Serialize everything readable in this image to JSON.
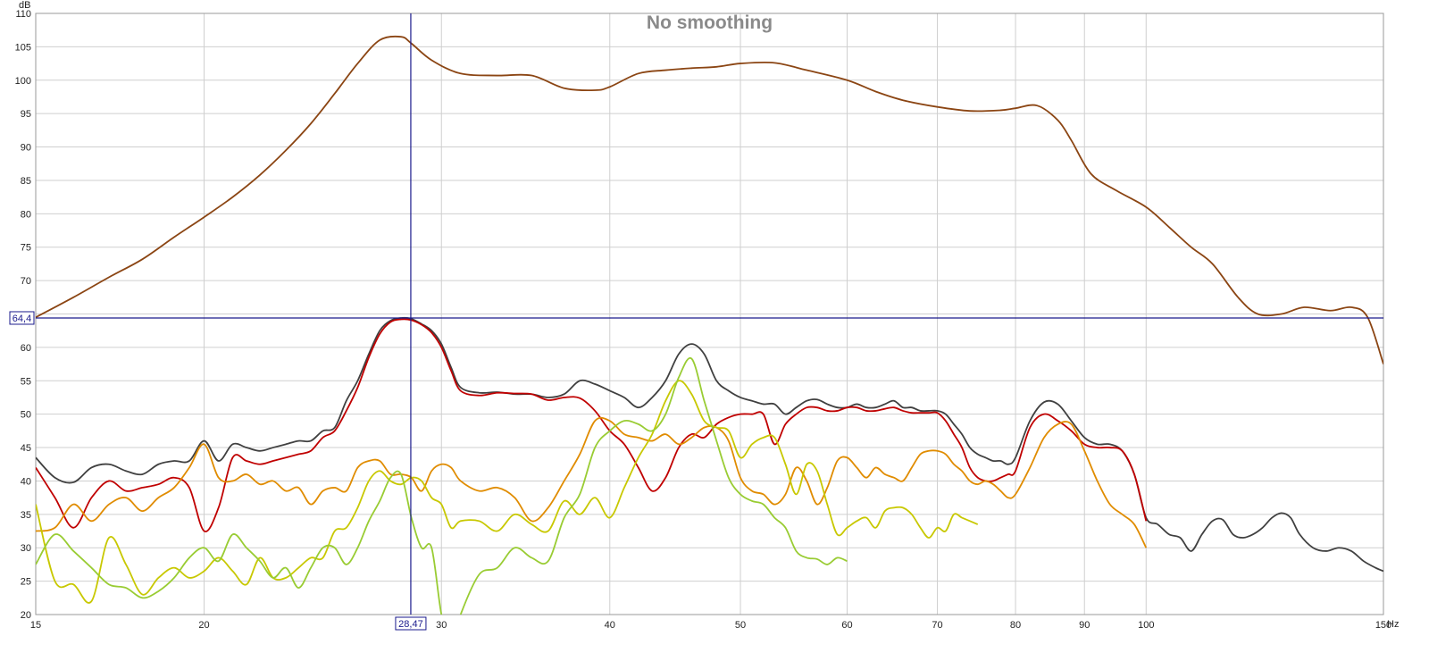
{
  "chart_data": {
    "type": "line",
    "title": "No smoothing",
    "ylabel": "dB",
    "xlabel": "Hz",
    "x_scale": "log",
    "xlim": [
      15,
      150
    ],
    "ylim": [
      20,
      110
    ],
    "grid": true,
    "x_ticks": [
      15,
      20,
      30,
      40,
      50,
      60,
      70,
      80,
      90,
      100,
      150
    ],
    "x_tick_labels": [
      "15",
      "20",
      "30",
      "40",
      "50",
      "60",
      "70",
      "80",
      "90",
      "100",
      "150"
    ],
    "y_ticks": [
      20,
      25,
      30,
      35,
      40,
      45,
      50,
      55,
      60,
      65,
      70,
      75,
      80,
      85,
      90,
      95,
      100,
      105,
      110
    ],
    "y_tick_labels": [
      "20",
      "25",
      "30",
      "35",
      "40",
      "45",
      "50",
      "55",
      "60",
      "",
      "70",
      "75",
      "80",
      "85",
      "90",
      "95",
      "100",
      "105",
      "110"
    ],
    "cursor": {
      "x": 28.47,
      "y": 64.4,
      "x_label": "28,47",
      "y_label": "64,4",
      "color": "#1a1a8c"
    },
    "series": [
      {
        "color": "#8b4513",
        "x": [
          15,
          16,
          17,
          18,
          19,
          20,
          21,
          22,
          23,
          24,
          25,
          26,
          27,
          28,
          28.5,
          29.5,
          31,
          33,
          35,
          37,
          39,
          40,
          42,
          44,
          46,
          48,
          50,
          53,
          56,
          60,
          63,
          66,
          70,
          74,
          78,
          80,
          83,
          86,
          88,
          91,
          95,
          100,
          104,
          108,
          112,
          117,
          121,
          126,
          131,
          137,
          142,
          146,
          150
        ],
        "y": [
          64.5,
          67.5,
          70.5,
          73.2,
          76.5,
          79.5,
          82.5,
          85.8,
          89.5,
          93.5,
          98,
          102.5,
          106,
          106.5,
          105.5,
          103,
          101,
          100.7,
          100.7,
          98.8,
          98.5,
          99,
          101,
          101.5,
          101.8,
          102,
          102.5,
          102.6,
          101.5,
          100,
          98.3,
          97,
          96,
          95.4,
          95.5,
          95.8,
          96.2,
          94,
          91,
          86,
          83.5,
          81,
          78,
          75,
          72.5,
          67.5,
          65,
          65,
          66,
          65.5,
          66,
          64.5,
          57.5
        ]
      },
      {
        "color": "#404040",
        "x": [
          15,
          15.5,
          16,
          16.5,
          17,
          17.5,
          18,
          18.5,
          19,
          19.5,
          20,
          20.5,
          21,
          21.5,
          22,
          22.5,
          23,
          23.5,
          24,
          24.5,
          25,
          25.5,
          26,
          26.5,
          27,
          27.5,
          28,
          28.47,
          29,
          29.5,
          30,
          30.5,
          31,
          32,
          33,
          34,
          35,
          36,
          37,
          38,
          39,
          40,
          41,
          42,
          43,
          44,
          45,
          46,
          47,
          48,
          49,
          50,
          51,
          52,
          53,
          54,
          55,
          56,
          57,
          58,
          59,
          60,
          61,
          62,
          63,
          64,
          65,
          66,
          67,
          68,
          69,
          70,
          71,
          72,
          73,
          74,
          75,
          76,
          77,
          78,
          79,
          80,
          82,
          84,
          86,
          88,
          90,
          92,
          94,
          96,
          98,
          100,
          102,
          104,
          106,
          108,
          110,
          112,
          114,
          116,
          118,
          120,
          122,
          124,
          126,
          128,
          130,
          133,
          136,
          139,
          142,
          145,
          148,
          150
        ],
        "y": [
          43.5,
          40.5,
          39.8,
          42,
          42.5,
          41.5,
          41,
          42.5,
          43,
          43,
          46,
          43,
          45.5,
          45,
          44.5,
          45,
          45.5,
          46,
          46,
          47.5,
          48,
          52,
          55,
          59,
          62.5,
          64,
          64.4,
          64.3,
          63.5,
          62.5,
          60.5,
          57,
          54,
          53.2,
          53.3,
          53,
          53,
          52.5,
          53,
          55,
          54.5,
          53.5,
          52.5,
          51,
          52.5,
          55,
          59,
          60.5,
          59,
          55,
          53.5,
          52.5,
          52,
          51.5,
          51.5,
          50,
          51,
          52,
          52.2,
          51.5,
          51,
          51,
          51.5,
          51,
          51,
          51.5,
          52,
          51,
          51,
          50.5,
          50.5,
          50.5,
          50,
          48.5,
          47,
          45,
          44,
          43.5,
          43,
          43,
          42.5,
          43.5,
          49,
          51.8,
          51.5,
          49,
          46.5,
          45.5,
          45.5,
          44.5,
          41,
          34.5,
          33.5,
          32,
          31.5,
          29.5,
          32,
          34,
          34.2,
          32,
          31.5,
          32,
          33,
          34.5,
          35.2,
          34.5,
          32,
          30,
          29.5,
          30,
          29.5,
          28,
          27,
          26.5
        ]
      },
      {
        "color": "#c00000",
        "x": [
          15,
          15.5,
          16,
          16.5,
          17,
          17.5,
          18,
          18.5,
          19,
          19.5,
          20,
          20.5,
          21,
          21.5,
          22,
          22.5,
          23,
          23.5,
          24,
          24.5,
          25,
          25.5,
          26,
          26.5,
          27,
          27.5,
          28,
          28.47,
          29,
          29.5,
          30,
          30.5,
          31,
          32,
          33,
          34,
          35,
          36,
          37,
          38,
          39,
          40,
          41,
          42,
          43,
          44,
          45,
          46,
          47,
          48,
          49,
          50,
          51,
          52,
          53,
          54,
          55,
          56,
          57,
          58,
          59,
          60,
          61,
          62,
          63,
          64,
          65,
          66,
          67,
          68,
          69,
          70,
          71,
          72,
          73,
          74,
          75,
          76,
          77,
          78,
          79,
          80,
          82,
          84,
          86,
          88,
          90,
          92,
          94,
          96,
          98,
          100
        ],
        "y": [
          42,
          37.5,
          33,
          37.5,
          40,
          38.5,
          39,
          39.5,
          40.5,
          39,
          32.5,
          36,
          43.5,
          43,
          42.5,
          43,
          43.5,
          44,
          44.5,
          46.5,
          47.5,
          50.5,
          54,
          58.5,
          62,
          63.8,
          64.2,
          64.1,
          63.4,
          62.2,
          60,
          56.5,
          53.5,
          52.8,
          53.2,
          53.1,
          53,
          52.1,
          52.5,
          52.4,
          50.5,
          47.5,
          45.5,
          42,
          38.5,
          40.5,
          45,
          47,
          46.5,
          48.5,
          49.5,
          50,
          50,
          50,
          45.5,
          48.5,
          50,
          51,
          51,
          50.5,
          50.5,
          51,
          51,
          50.5,
          50.5,
          50.8,
          51,
          50.5,
          50.2,
          50.2,
          50.2,
          50.2,
          49,
          47,
          45,
          42,
          40.5,
          40,
          40,
          40.5,
          41,
          41.5,
          48,
          50,
          49,
          47.5,
          45.5,
          45,
          45,
          44.5,
          41,
          34
        ]
      },
      {
        "color": "#e08c00",
        "x": [
          15,
          15.5,
          16,
          16.5,
          17,
          17.5,
          18,
          18.5,
          19,
          19.5,
          20,
          20.5,
          21,
          21.5,
          22,
          22.5,
          23,
          23.5,
          24,
          24.5,
          25,
          25.5,
          26,
          26.5,
          27,
          27.5,
          28,
          28.5,
          29,
          29.5,
          30,
          30.5,
          31,
          32,
          33,
          34,
          35,
          36,
          37,
          38,
          39,
          40,
          41,
          42,
          43,
          44,
          45,
          46,
          47,
          48,
          49,
          50,
          51,
          52,
          53,
          54,
          55,
          56,
          57,
          58,
          59,
          60,
          61,
          62,
          63,
          64,
          65,
          66,
          67,
          68,
          69,
          70,
          71,
          72,
          73,
          74,
          75,
          76,
          77,
          78,
          79,
          80,
          82,
          84,
          86,
          88,
          90,
          92,
          94,
          96,
          98,
          100
        ],
        "y": [
          32.5,
          33,
          36.5,
          34,
          36.5,
          37.5,
          35.5,
          37.5,
          39,
          42,
          45.5,
          40.5,
          40,
          41,
          39.5,
          40,
          38.5,
          39,
          36.5,
          38.5,
          39,
          38.5,
          42,
          43,
          43,
          41,
          41,
          40.5,
          38.5,
          41.5,
          42.5,
          42,
          40,
          38.5,
          39,
          37.5,
          34,
          36,
          40,
          44,
          49,
          49,
          47,
          46.5,
          46,
          47,
          45.5,
          46.5,
          48,
          48,
          46,
          40.5,
          38.5,
          38,
          36.5,
          38,
          42,
          40,
          36.5,
          39,
          43,
          43.5,
          42,
          40.5,
          42,
          41,
          40.5,
          40,
          42,
          44,
          44.5,
          44.5,
          44,
          42.5,
          41.5,
          40,
          39.5,
          40,
          39.5,
          38.5,
          37.5,
          38,
          42,
          46.5,
          48.5,
          48.5,
          44.5,
          40,
          36.5,
          35,
          33.5,
          30
        ]
      },
      {
        "color": "#c8c800",
        "x": [
          15,
          15.5,
          16,
          16.5,
          17,
          17.5,
          18,
          18.5,
          19,
          19.5,
          20,
          20.5,
          21,
          21.5,
          22,
          22.5,
          23,
          23.5,
          24,
          24.5,
          25,
          25.5,
          26,
          26.5,
          27,
          27.5,
          28,
          28.5,
          29,
          29.5,
          30,
          30.5,
          31,
          32,
          33,
          34,
          35,
          36,
          37,
          38,
          39,
          40,
          41,
          42,
          43,
          44,
          45,
          46,
          47,
          48,
          49,
          50,
          51,
          52,
          53,
          54,
          55,
          56,
          57,
          58,
          59,
          60,
          61,
          62,
          63,
          64,
          65,
          66,
          67,
          68,
          69,
          70,
          71,
          72,
          73,
          74,
          75
        ],
        "y": [
          36.5,
          25,
          24.5,
          22,
          31.5,
          27.5,
          23,
          25.5,
          27,
          25.5,
          26.5,
          28.5,
          26.5,
          24.5,
          28.5,
          25.5,
          25.5,
          27,
          28.5,
          28.5,
          32.5,
          33,
          36,
          40,
          41.5,
          40,
          39.5,
          40.5,
          40,
          37.5,
          36.5,
          33,
          34,
          34,
          32.5,
          35,
          33.5,
          32.5,
          37,
          35,
          37.5,
          34.5,
          39,
          43.5,
          47,
          52,
          55,
          53,
          49,
          48,
          47.5,
          43.5,
          45.5,
          46.5,
          46.5,
          42.5,
          38,
          42.5,
          41.5,
          36.5,
          32,
          33,
          34,
          34.5,
          33,
          35.5,
          36,
          36,
          35,
          33,
          31.5,
          33,
          32.5,
          35,
          34.5,
          34,
          33.5
        ]
      },
      {
        "color": "#99cc33",
        "x": [
          15,
          15.5,
          16,
          16.5,
          17,
          17.5,
          18,
          18.5,
          19,
          19.5,
          20,
          20.5,
          21,
          21.5,
          22,
          22.5,
          23,
          23.5,
          24,
          24.5,
          25,
          25.5,
          26,
          26.5,
          27,
          27.5,
          28,
          28.5,
          29,
          29.5,
          30,
          30.5,
          31,
          32,
          33,
          34,
          35,
          36,
          37,
          38,
          39,
          40,
          41,
          42,
          43,
          44,
          45,
          46,
          47,
          48,
          49,
          50,
          51,
          52,
          53,
          54,
          55,
          56,
          57,
          58,
          59,
          60
        ],
        "y": [
          27.5,
          32,
          29.5,
          27,
          24.5,
          24,
          22.5,
          23.5,
          25.5,
          28.5,
          30,
          28,
          32,
          30,
          28,
          25.5,
          27,
          24,
          27,
          30,
          30,
          27.5,
          30,
          34,
          37,
          40.5,
          41,
          34.5,
          30,
          30,
          20,
          15,
          20,
          26,
          27,
          30,
          28.5,
          28,
          34.5,
          38,
          45,
          47.5,
          49,
          48.5,
          47.5,
          50,
          55.5,
          58.3,
          52,
          46,
          40.5,
          38,
          37,
          36.5,
          34.5,
          33,
          29.5,
          28.5,
          28.3,
          27.5,
          28.5,
          28
        ]
      }
    ]
  }
}
